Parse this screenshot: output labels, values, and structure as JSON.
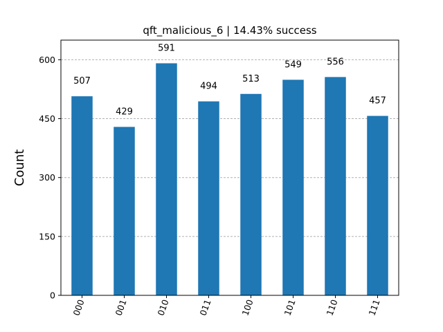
{
  "chart_data": {
    "type": "bar",
    "title": "qft_malicious_6 | 14.43% success",
    "xlabel": "",
    "ylabel": "Count",
    "categories": [
      "000",
      "001",
      "010",
      "011",
      "100",
      "101",
      "110",
      "111"
    ],
    "values": [
      507,
      429,
      591,
      494,
      513,
      549,
      556,
      457
    ],
    "ylim": [
      0,
      650
    ],
    "yticks": [
      0,
      150,
      300,
      450,
      600
    ],
    "bar_color": "#1f77b4",
    "grid": "y-dashed"
  }
}
